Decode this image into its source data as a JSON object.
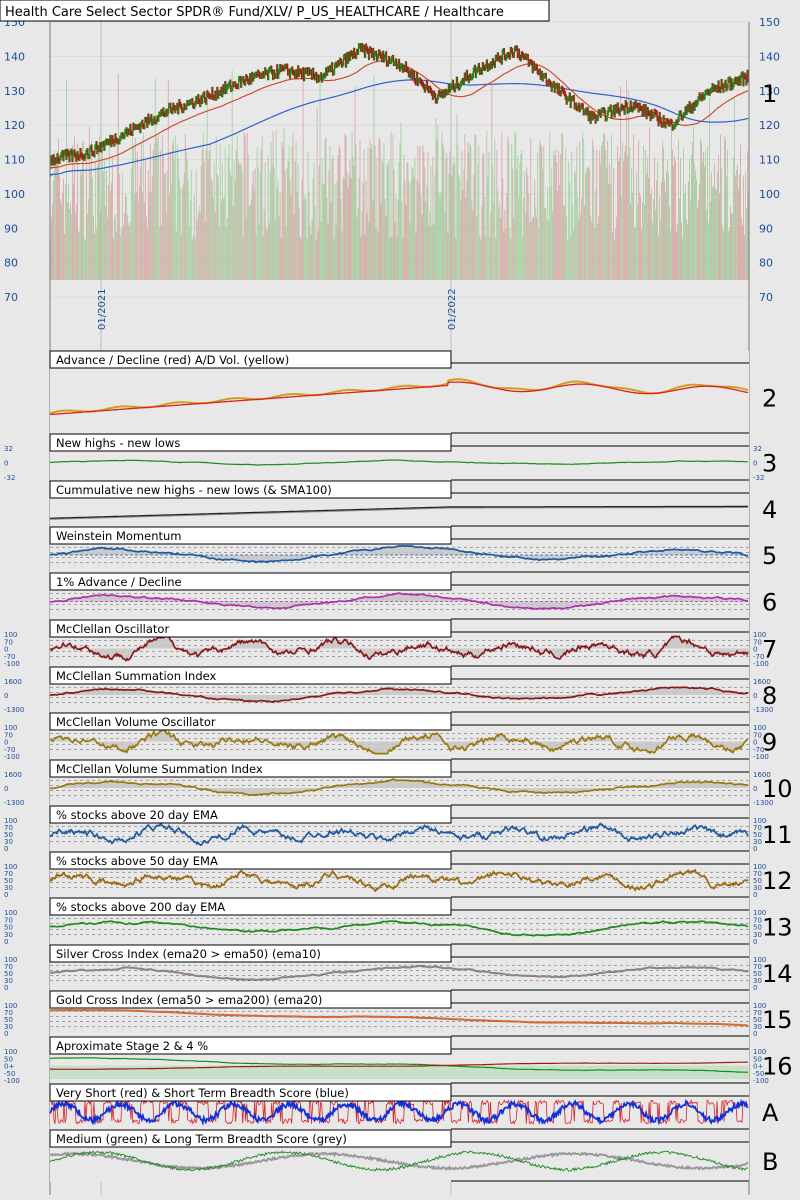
{
  "header": {
    "title": "Health Care Select Sector SPDR® Fund/XLV/ P_US_HEALTHCARE / Healthcare"
  },
  "chart_data": {
    "type": "line",
    "main": {
      "left_ticks": [
        150,
        140,
        130,
        120,
        110,
        100,
        90,
        80,
        70
      ],
      "right_ticks": [
        150,
        140,
        130,
        120,
        110,
        100,
        90,
        80,
        70
      ],
      "date_labels": [
        "01/2021",
        "01/2022"
      ],
      "label": "1",
      "price_close": [
        110,
        112,
        118,
        124,
        128,
        133,
        136,
        134,
        142,
        138,
        128,
        136,
        142,
        131,
        122,
        126,
        120,
        130,
        134
      ],
      "colors": {
        "price_up": "#1a8a1a",
        "price_down": "#b01818",
        "sma_short": "#d04020",
        "sma_long": "#3060d0",
        "vol_up": "#8fcf8f",
        "vol_down": "#d89a9a"
      }
    },
    "panels": [
      {
        "title": "Advance / Decline (red) A/D Vol. (yellow)",
        "label": "2"
      },
      {
        "title": "New highs - new lows",
        "label": "3",
        "ticks": [
          "32",
          "0",
          "-32"
        ]
      },
      {
        "title": "Cummulative new highs - new lows (& SMA100)",
        "label": "4"
      },
      {
        "title": "Weinstein Momentum",
        "label": "5"
      },
      {
        "title": "1% Advance / Decline",
        "label": "6"
      },
      {
        "title": "McClellan Oscillator",
        "label": "7",
        "ticks": [
          "100",
          "70",
          "0",
          "-70",
          "-100"
        ]
      },
      {
        "title": "McClellan Summation Index",
        "label": "8",
        "ticks": [
          "1600",
          "0",
          "-1300"
        ]
      },
      {
        "title": "McClellan Volume Oscillator",
        "label": "9",
        "ticks": [
          "100",
          "70",
          "0",
          "-70",
          "-100"
        ]
      },
      {
        "title": "McClellan Volume Summation Index",
        "label": "10",
        "ticks": [
          "1600",
          "0",
          "-1300"
        ]
      },
      {
        "title": "% stocks above 20 day EMA",
        "label": "11",
        "ticks": [
          "100",
          "70",
          "50",
          "30",
          "0"
        ]
      },
      {
        "title": "% stocks above 50 day EMA",
        "label": "12",
        "ticks": [
          "100",
          "70",
          "50",
          "30",
          "0"
        ]
      },
      {
        "title": "% stocks above 200 day EMA",
        "label": "13",
        "ticks": [
          "100",
          "70",
          "50",
          "30",
          "0"
        ]
      },
      {
        "title": "Silver Cross Index (ema20 > ema50) (ema10)",
        "label": "14",
        "ticks": [
          "100",
          "70",
          "50",
          "30",
          "0"
        ]
      },
      {
        "title": "Gold Cross Index (ema50 > ema200) (ema20)",
        "label": "15",
        "ticks": [
          "100",
          "70",
          "50",
          "30",
          "0"
        ]
      },
      {
        "title": "Aproximate Stage 2 & 4 %",
        "label": "16",
        "ticks": [
          "100",
          "50",
          "0+",
          "-50",
          "-100"
        ]
      },
      {
        "title": "Very Short (red) & Short Term Breadth Score (blue)",
        "label": "A"
      },
      {
        "title": "Medium (green) & Long Term Breadth Score (grey)",
        "label": "B"
      }
    ]
  }
}
